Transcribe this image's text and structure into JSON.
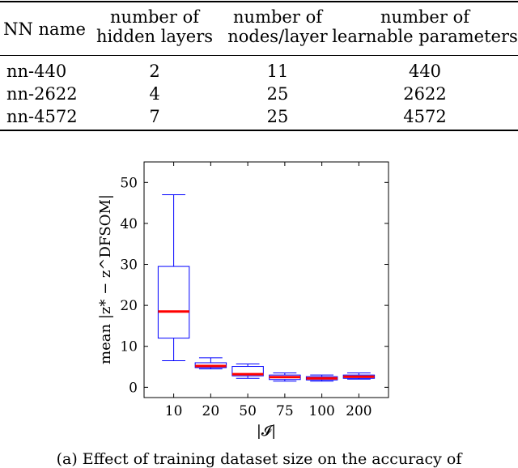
{
  "table": {
    "headers": [
      [
        "NN name"
      ],
      [
        "number of",
        "hidden layers"
      ],
      [
        "number of",
        "nodes/layer"
      ],
      [
        "number of",
        "learnable parameters"
      ]
    ],
    "rows": [
      [
        "nn-440",
        "2",
        "11",
        "440"
      ],
      [
        "nn-2622",
        "4",
        "25",
        "2622"
      ],
      [
        "nn-4572",
        "7",
        "25",
        "4572"
      ]
    ]
  },
  "chart_data": {
    "type": "box",
    "categories": [
      "10",
      "20",
      "50",
      "75",
      "100",
      "200"
    ],
    "boxes": [
      {
        "category": "10",
        "whisker_low": 6.5,
        "q1": 12.0,
        "median": 18.5,
        "q3": 29.5,
        "whisker_high": 47.0
      },
      {
        "category": "20",
        "whisker_low": 4.5,
        "q1": 4.8,
        "median": 5.2,
        "q3": 6.0,
        "whisker_high": 7.2
      },
      {
        "category": "50",
        "whisker_low": 2.2,
        "q1": 2.8,
        "median": 3.2,
        "q3": 5.1,
        "whisker_high": 5.7
      },
      {
        "category": "75",
        "whisker_low": 1.5,
        "q1": 1.9,
        "median": 2.5,
        "q3": 3.0,
        "whisker_high": 3.5
      },
      {
        "category": "100",
        "whisker_low": 1.5,
        "q1": 1.8,
        "median": 2.2,
        "q3": 2.6,
        "whisker_high": 3.0
      },
      {
        "category": "200",
        "whisker_low": 2.0,
        "q1": 2.2,
        "median": 2.6,
        "q3": 3.0,
        "whisker_high": 3.5
      }
    ],
    "xlabel": "|𝓘|",
    "ylabel": "mean |z* − z^DFSOM|",
    "ylim": [
      -2.5,
      55
    ],
    "yticks": [
      0,
      10,
      20,
      30,
      40,
      50
    ],
    "box_color": "#0000ff",
    "median_color": "#ff0000",
    "grid": false
  },
  "caption": "(a) Effect of training dataset size on the accuracy of"
}
